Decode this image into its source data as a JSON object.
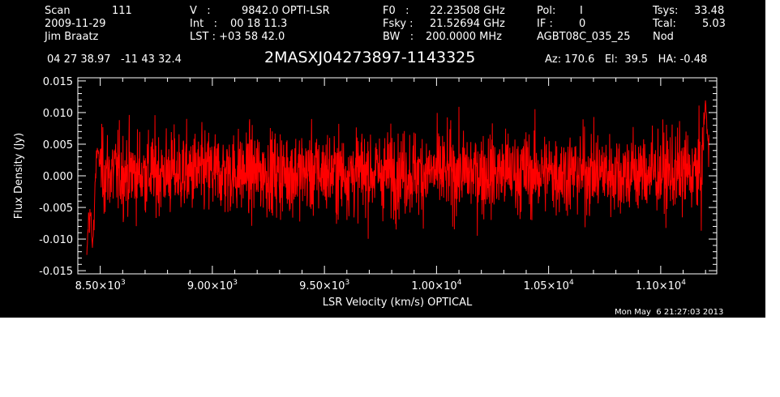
{
  "header": {
    "scan_label": "Scan",
    "scan_value": "111",
    "date": "2009-11-29",
    "observer": "Jim Braatz",
    "v_label": "V   :",
    "v_value": "9842.0 OPTI-LSR",
    "int_label": "Int   :",
    "int_value": "00 18 11.3",
    "lst_label": "LST : +03 58 42.0",
    "f0_label": "F0   :",
    "f0_value": "22.23508 GHz",
    "fsky_label": "Fsky :",
    "fsky_value": "21.52694 GHz",
    "bw_label": "BW   :",
    "bw_value": "200.0000 MHz",
    "pol_label": "Pol:",
    "pol_value": "I",
    "if_label": "IF :",
    "if_value": "0",
    "project": "AGBT08C_035_25",
    "tsys_label": "Tsys:",
    "tsys_value": "33.48",
    "tcal_label": "Tcal:",
    "tcal_value": "5.03",
    "mode": "Nod",
    "coords": "04 27 38.97   -11 43 32.4",
    "source": "2MASXJ04273897-1143325",
    "az_el_ha": "Az: 170.6   El:  39.5   HA: -0.48",
    "timestamp": "Mon May  6 21:27:03 2013"
  },
  "colors": {
    "background": "#000000",
    "axes": "#ffffff",
    "series": "#ff0000"
  },
  "chart_data": {
    "type": "line",
    "xlabel": "LSR Velocity (km/s) OPTICAL",
    "ylabel": "Flux Density (Jy)",
    "xlim": [
      8400,
      11250
    ],
    "ylim": [
      -0.0155,
      0.0155
    ],
    "x_ticks": [
      {
        "value": 8500,
        "mantissa": "8.50",
        "exp": "3"
      },
      {
        "value": 9000,
        "mantissa": "9.00",
        "exp": "3"
      },
      {
        "value": 9500,
        "mantissa": "9.50",
        "exp": "3"
      },
      {
        "value": 10000,
        "mantissa": "1.00",
        "exp": "4"
      },
      {
        "value": 10500,
        "mantissa": "1.05",
        "exp": "4"
      },
      {
        "value": 11000,
        "mantissa": "1.10",
        "exp": "4"
      }
    ],
    "y_ticks": [
      {
        "value": 0.015,
        "label": "0.015"
      },
      {
        "value": 0.01,
        "label": "0.010"
      },
      {
        "value": 0.005,
        "label": "0.005"
      },
      {
        "value": 0.0,
        "label": "0.000"
      },
      {
        "value": -0.005,
        "label": "-0.005"
      },
      {
        "value": -0.01,
        "label": "-0.010"
      },
      {
        "value": -0.015,
        "label": "-0.015"
      }
    ],
    "series": [
      {
        "x_start": 8440,
        "x_end": 11215,
        "noise_rms": 0.0033,
        "baseline": 0.0005,
        "features": [
          {
            "x": 8440,
            "y": -0.0125
          },
          {
            "x": 8465,
            "y": -0.0115
          },
          {
            "x": 8490,
            "y": 0.004
          },
          {
            "x": 11200,
            "y": 0.012
          }
        ]
      }
    ]
  }
}
